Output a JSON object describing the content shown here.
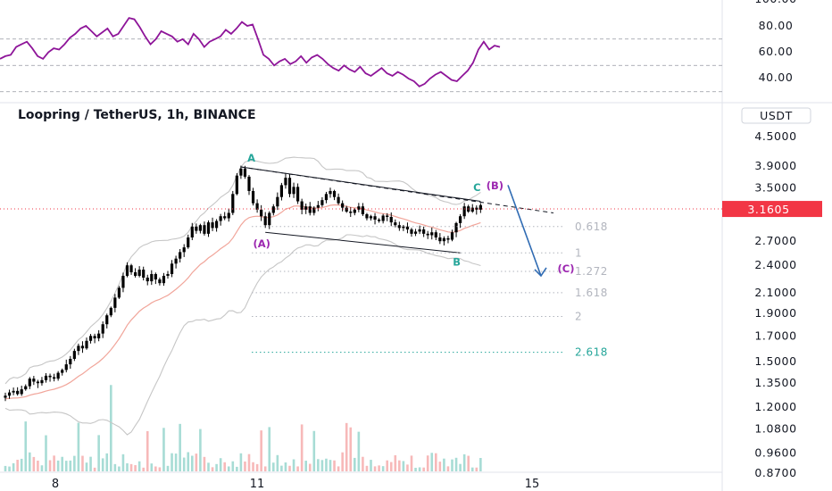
{
  "header": {
    "title": "Loopring / TetherUS, 1h, BINANCE",
    "currency": "USDT"
  },
  "colors": {
    "rsi": "#8e1599",
    "candle": "#000000",
    "ema": "#f1a59a",
    "bands": "#c6c6c6",
    "price_line": "#f23645",
    "wave_a": "#26a69a",
    "wave_b": "#9c27b0",
    "arrow": "#2f6bb3",
    "fib": "#b2b5be",
    "fib_2618": "#26a69a",
    "volume_up": "#a7dcd5",
    "volume_down": "#f7b9b9"
  },
  "chart_data": [
    {
      "type": "line",
      "name": "RSI",
      "yaxis": {
        "scale": "linear",
        "ticks": [
          "100.00",
          "80.00",
          "60.00",
          "40.00"
        ]
      },
      "reference_levels": [
        70,
        50,
        30
      ],
      "values": [
        55,
        57,
        58,
        64,
        66,
        68,
        63,
        57,
        55,
        60,
        63,
        62,
        66,
        71,
        74,
        78,
        80,
        76,
        72,
        75,
        78,
        72,
        74,
        80,
        86,
        85,
        79,
        72,
        66,
        70,
        76,
        74,
        72,
        68,
        70,
        66,
        74,
        70,
        64,
        68,
        70,
        72,
        77,
        74,
        78,
        83,
        80,
        81,
        70,
        58,
        55,
        50,
        53,
        55,
        51,
        53,
        57,
        52,
        56,
        58,
        55,
        51,
        48,
        46,
        50,
        47,
        45,
        49,
        44,
        42,
        45,
        48,
        44,
        42,
        45,
        43,
        40,
        38,
        34,
        36,
        40,
        43,
        45,
        42,
        39,
        38,
        42,
        46,
        52,
        62,
        68,
        62,
        65,
        64
      ]
    },
    {
      "type": "candlestick",
      "name": "Loopring / TetherUS",
      "yaxis": {
        "scale": "log",
        "ticks": [
          "4.5000",
          "3.9000",
          "3.5000",
          "2.7000",
          "2.4000",
          "2.1000",
          "1.9000",
          "1.7000",
          "1.5000",
          "1.3500",
          "1.2000",
          "1.0800",
          "0.9600",
          "0.8700"
        ]
      },
      "xaxis": {
        "ticks": [
          "8",
          "11",
          "15"
        ]
      },
      "last_price": 3.1605,
      "last_price_label": "3.1605",
      "closes": [
        1.27,
        1.29,
        1.3,
        1.28,
        1.31,
        1.33,
        1.38,
        1.36,
        1.35,
        1.37,
        1.4,
        1.39,
        1.38,
        1.42,
        1.44,
        1.48,
        1.52,
        1.58,
        1.62,
        1.6,
        1.66,
        1.7,
        1.68,
        1.72,
        1.8,
        1.88,
        1.95,
        2.05,
        2.15,
        2.28,
        2.4,
        2.32,
        2.28,
        2.35,
        2.26,
        2.22,
        2.3,
        2.24,
        2.2,
        2.28,
        2.3,
        2.42,
        2.48,
        2.56,
        2.62,
        2.75,
        2.9,
        2.84,
        2.92,
        2.8,
        2.96,
        2.88,
        2.98,
        3.05,
        3.02,
        3.1,
        3.4,
        3.72,
        3.85,
        3.7,
        3.45,
        3.25,
        3.15,
        3.05,
        2.92,
        3.1,
        3.2,
        3.35,
        3.55,
        3.68,
        3.4,
        3.52,
        3.28,
        3.15,
        3.2,
        3.1,
        3.18,
        3.22,
        3.3,
        3.4,
        3.45,
        3.35,
        3.25,
        3.18,
        3.12,
        3.1,
        3.15,
        3.2,
        3.08,
        3.02,
        3.05,
        3.0,
        2.98,
        3.06,
        3.04,
        2.96,
        2.92,
        2.88,
        2.9,
        2.86,
        2.8,
        2.83,
        2.86,
        2.8,
        2.78,
        2.82,
        2.75,
        2.7,
        2.74,
        2.72,
        2.82,
        2.95,
        3.05,
        3.2,
        3.12,
        3.18,
        3.15,
        3.22
      ],
      "overlays": [
        "EMA",
        "Bollinger Bands"
      ],
      "wave_labels": [
        "A",
        "(A)",
        "B",
        "C",
        "(B)",
        "(C)"
      ],
      "fibonacci": [
        {
          "level": "0.618",
          "price": 2.9
        },
        {
          "level": "1",
          "price": 2.55
        },
        {
          "level": "1.272",
          "price": 2.33
        },
        {
          "level": "1.618",
          "price": 2.1
        },
        {
          "level": "2",
          "price": 1.87
        },
        {
          "level": "2.618",
          "price": 1.57
        }
      ]
    }
  ]
}
